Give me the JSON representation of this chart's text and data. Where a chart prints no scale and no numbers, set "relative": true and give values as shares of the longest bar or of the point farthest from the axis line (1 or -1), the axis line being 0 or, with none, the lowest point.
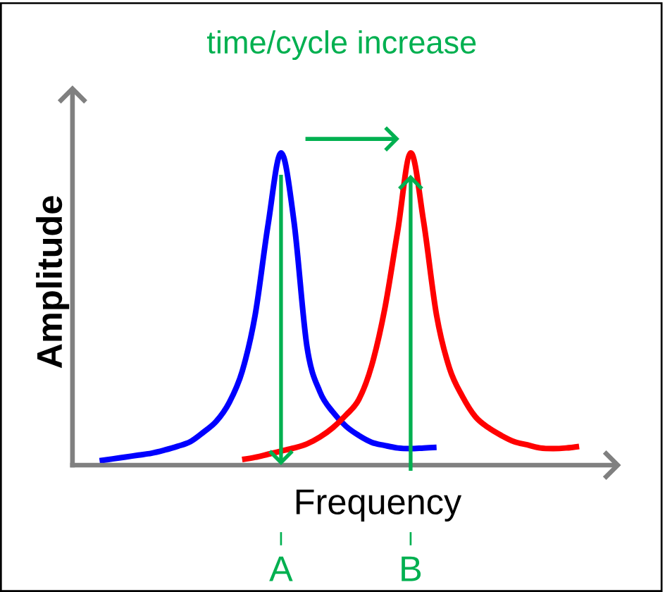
{
  "chart_data": {
    "type": "line",
    "relative": true,
    "title": "time/cycle increase",
    "xlabel": "Frequency",
    "ylabel": "Amplitude",
    "categories": [
      null,
      null,
      null,
      null,
      null,
      null,
      null,
      null,
      null,
      null,
      null,
      null,
      null,
      null,
      "A",
      null,
      null,
      null,
      null,
      null,
      null,
      null,
      null,
      null,
      "B",
      null,
      null,
      null,
      null,
      null,
      null,
      null,
      null,
      null,
      null,
      null,
      null,
      null
    ],
    "marker": "none",
    "line_style": "solid",
    "series": [
      {
        "color": "#0000ff",
        "values": [
          0.014,
          0.02,
          0.026,
          0.032,
          0.038,
          0.048,
          0.06,
          0.075,
          0.105,
          0.14,
          0.2,
          0.3,
          0.48,
          0.77,
          1,
          0.78,
          0.38,
          0.235,
          0.17,
          0.125,
          0.095,
          0.073,
          0.063,
          0.055,
          0.053,
          0.055,
          0.057,
          null,
          null,
          null,
          null,
          null,
          null,
          null,
          null,
          null,
          null,
          null
        ]
      },
      {
        "color": "#ff0000",
        "values": [
          null,
          null,
          null,
          null,
          null,
          null,
          null,
          null,
          null,
          null,
          null,
          0.018,
          0.025,
          0.035,
          0.045,
          0.055,
          0.068,
          0.09,
          0.12,
          0.16,
          0.21,
          0.32,
          0.5,
          0.75,
          1,
          0.78,
          0.48,
          0.31,
          0.22,
          0.155,
          0.12,
          0.095,
          0.075,
          0.065,
          0.055,
          0.053,
          0.055,
          0.06
        ]
      }
    ]
  }
}
